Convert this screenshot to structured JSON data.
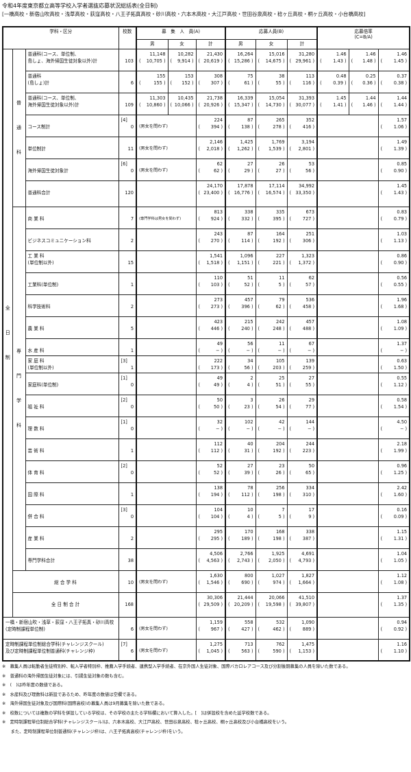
{
  "title": "令和4年度東京都立高等学校入学者選抜応募状況総括表(全日制)",
  "subtitle": "[一橋高校・新宿山吹高校・浅草高校・荻窪高校・八王子拓真高校・砂川高校・六本木高校・大江戸高校・世田谷泉高校・稔ヶ丘高校・桐ヶ丘高校・小台橋高校]",
  "header": {
    "category": "学科・区分",
    "schools": "校数",
    "recruit": "募　集　人　員(A)",
    "apply": "応募人員(B)",
    "ratio": "応募倍率",
    "ratio_formula": "(C=B/A)",
    "male": "男",
    "female": "女",
    "total": "計"
  },
  "sections": {
    "fulltime": [
      "全",
      "日",
      "制"
    ],
    "general": [
      "普",
      "通",
      "科"
    ],
    "specialized": [
      "専",
      "門",
      "学",
      "科"
    ]
  },
  "rows": [
    {
      "label": [
        "普通科(コース、単位制、",
        "島しょ、海外帰国生徒対象以外)計"
      ],
      "schools": "103",
      "recruit": [
        "11,148",
        "10,282",
        "21,430"
      ],
      "recruit_prev": [
        "10,705",
        "9,914",
        "20,619"
      ],
      "apply": [
        "16,264",
        "15,016",
        "31,280"
      ],
      "apply_prev": [
        "15,286",
        "14,675",
        "29,961"
      ],
      "ratio": [
        "1.46",
        "1.46",
        "1.46"
      ],
      "ratio_prev": [
        "1.43",
        "1.48",
        "1.45"
      ]
    },
    {
      "label": [
        "普通科",
        "(島しょ)計"
      ],
      "schools": "6",
      "recruit": [
        "155",
        "153",
        "308"
      ],
      "recruit_prev": [
        "155",
        "152",
        "307"
      ],
      "apply": [
        "75",
        "38",
        "113"
      ],
      "apply_prev": [
        "61",
        "55",
        "116"
      ],
      "ratio": [
        "0.48",
        "0.25",
        "0.37"
      ],
      "ratio_prev": [
        "0.39",
        "0.36",
        "0.38"
      ]
    },
    {
      "label": [
        "普通科(コース、単位制、",
        "海外帰国生徒対象以外)計"
      ],
      "schools": "109",
      "recruit": [
        "11,303",
        "10,435",
        "21,738"
      ],
      "recruit_prev": [
        "10,860",
        "10,066",
        "20,926"
      ],
      "apply": [
        "16,339",
        "15,054",
        "31,393"
      ],
      "apply_prev": [
        "15,347",
        "14,730",
        "30,077"
      ],
      "ratio": [
        "1.45",
        "1.44",
        "1.44"
      ],
      "ratio_prev": [
        "1.41",
        "1.46",
        "1.44"
      ]
    },
    {
      "label": [
        "コース制計"
      ],
      "bracket": "[4]",
      "schools": "0",
      "note": "(男女を問わず)",
      "recruit": [
        "224"
      ],
      "recruit_prev": [
        "394"
      ],
      "apply": [
        "87",
        "265",
        "352"
      ],
      "apply_prev": [
        "138",
        "278",
        "416"
      ],
      "ratio": [
        "1.57"
      ],
      "ratio_prev": [
        "1.06"
      ]
    },
    {
      "label": [
        "単位制計"
      ],
      "schools": "11",
      "note": "(男女を問わず)",
      "recruit": [
        "2,146"
      ],
      "recruit_prev": [
        "2,018"
      ],
      "apply": [
        "1,425",
        "1,769",
        "3,194"
      ],
      "apply_prev": [
        "1,262",
        "1,539",
        "2,801"
      ],
      "ratio": [
        "1.49"
      ],
      "ratio_prev": [
        "1.39"
      ]
    },
    {
      "label": [
        "海外帰国生徒対象計"
      ],
      "bracket": "[6]",
      "schools": "0",
      "note": "(男女を問わず)",
      "recruit": [
        "62"
      ],
      "recruit_prev": [
        "62"
      ],
      "apply": [
        "27",
        "26",
        "53"
      ],
      "apply_prev": [
        "29",
        "27",
        "56"
      ],
      "ratio": [
        "0.85"
      ],
      "ratio_prev": [
        "0.90"
      ]
    },
    {
      "label": [
        "普通科合計"
      ],
      "schools": "120",
      "recruit": [
        "24,170"
      ],
      "recruit_prev": [
        "23,400"
      ],
      "apply": [
        "17,878",
        "17,114",
        "34,992"
      ],
      "apply_prev": [
        "16,776",
        "16,574",
        "33,350"
      ],
      "ratio": [
        "1.45"
      ],
      "ratio_prev": [
        "1.43"
      ]
    },
    {
      "label": [
        "商 業 科"
      ],
      "schools": "7",
      "note": "(専門学科は男女を問わず)",
      "recruit": [
        "813"
      ],
      "recruit_prev": [
        "924"
      ],
      "apply": [
        "338",
        "335",
        "673"
      ],
      "apply_prev": [
        "332",
        "395",
        "727"
      ],
      "ratio": [
        "0.83"
      ],
      "ratio_prev": [
        "0.79"
      ]
    },
    {
      "label": [
        "ビジネスコミュニケーション科"
      ],
      "schools": "2",
      "recruit": [
        "243"
      ],
      "recruit_prev": [
        "270"
      ],
      "apply": [
        "87",
        "164",
        "251"
      ],
      "apply_prev": [
        "114",
        "192",
        "306"
      ],
      "ratio": [
        "1.03"
      ],
      "ratio_prev": [
        "1.13"
      ]
    },
    {
      "label": [
        "工 業 科",
        "(単位制以外)"
      ],
      "schools": "15",
      "recruit": [
        "1,541"
      ],
      "recruit_prev": [
        "1,518"
      ],
      "apply": [
        "1,096",
        "227",
        "1,323"
      ],
      "apply_prev": [
        "1,151",
        "221",
        "1,372"
      ],
      "ratio": [
        "0.86"
      ],
      "ratio_prev": [
        "0.90"
      ]
    },
    {
      "label": [
        "工業科(単位制)"
      ],
      "schools": "1",
      "recruit": [
        "110"
      ],
      "recruit_prev": [
        "103"
      ],
      "apply": [
        "51",
        "11",
        "62"
      ],
      "apply_prev": [
        "52",
        "5",
        "57"
      ],
      "ratio": [
        "0.56"
      ],
      "ratio_prev": [
        "0.55"
      ]
    },
    {
      "label": [
        "科学技術科"
      ],
      "schools": "2",
      "recruit": [
        "273"
      ],
      "recruit_prev": [
        "273"
      ],
      "apply": [
        "457",
        "79",
        "536"
      ],
      "apply_prev": [
        "396",
        "62",
        "458"
      ],
      "ratio": [
        "1.96"
      ],
      "ratio_prev": [
        "1.68"
      ]
    },
    {
      "label": [
        "農 業 科"
      ],
      "schools": "5",
      "recruit": [
        "423"
      ],
      "recruit_prev": [
        "446"
      ],
      "apply": [
        "215",
        "242",
        "457"
      ],
      "apply_prev": [
        "240",
        "248",
        "488"
      ],
      "ratio": [
        "1.08"
      ],
      "ratio_prev": [
        "1.09"
      ]
    },
    {
      "label": [
        "水 産 科"
      ],
      "schools": "1",
      "recruit": [
        "49"
      ],
      "recruit_prev": [
        "−"
      ],
      "apply": [
        "56",
        "11",
        "67"
      ],
      "apply_prev": [
        "−",
        "−",
        "−"
      ],
      "ratio": [
        "1.37"
      ],
      "ratio_prev": [
        "−"
      ]
    },
    {
      "label": [
        "家 庭 科",
        "(単位制以外)"
      ],
      "bracket": "[3]",
      "schools": "1",
      "recruit": [
        "222"
      ],
      "recruit_prev": [
        "173"
      ],
      "apply": [
        "34",
        "105",
        "139"
      ],
      "apply_prev": [
        "56",
        "203",
        "259"
      ],
      "ratio": [
        "0.63"
      ],
      "ratio_prev": [
        "1.50"
      ]
    },
    {
      "label": [
        "家庭科(単位制)"
      ],
      "bracket": "[1]",
      "schools": "0",
      "recruit": [
        "49"
      ],
      "recruit_prev": [
        "49"
      ],
      "apply": [
        "2",
        "25",
        "27"
      ],
      "apply_prev": [
        "4",
        "51",
        "55"
      ],
      "ratio": [
        "0.55"
      ],
      "ratio_prev": [
        "1.12"
      ]
    },
    {
      "label": [
        "福 祉 科"
      ],
      "bracket": "[2]",
      "schools": "0",
      "recruit": [
        "50"
      ],
      "recruit_prev": [
        "50"
      ],
      "apply": [
        "3",
        "26",
        "29"
      ],
      "apply_prev": [
        "23",
        "54",
        "77"
      ],
      "ratio": [
        "0.58"
      ],
      "ratio_prev": [
        "1.54"
      ]
    },
    {
      "label": [
        "理 数 科"
      ],
      "bracket": "[1]",
      "schools": "0",
      "recruit": [
        "32"
      ],
      "recruit_prev": [
        "−"
      ],
      "apply": [
        "102",
        "42",
        "144"
      ],
      "apply_prev": [
        "−",
        "−",
        "−"
      ],
      "ratio": [
        "4.50"
      ],
      "ratio_prev": [
        "−"
      ]
    },
    {
      "label": [
        "芸 術 科"
      ],
      "schools": "1",
      "recruit": [
        "112"
      ],
      "recruit_prev": [
        "112"
      ],
      "apply": [
        "40",
        "204",
        "244"
      ],
      "apply_prev": [
        "31",
        "192",
        "223"
      ],
      "ratio": [
        "2.18"
      ],
      "ratio_prev": [
        "1.99"
      ]
    },
    {
      "label": [
        "体 育 科"
      ],
      "bracket": "[2]",
      "schools": "0",
      "recruit": [
        "52"
      ],
      "recruit_prev": [
        "52"
      ],
      "apply": [
        "27",
        "23",
        "50"
      ],
      "apply_prev": [
        "39",
        "26",
        "65"
      ],
      "ratio": [
        "0.96"
      ],
      "ratio_prev": [
        "1.25"
      ]
    },
    {
      "label": [
        "国 際 科"
      ],
      "schools": "1",
      "recruit": [
        "138"
      ],
      "recruit_prev": [
        "194"
      ],
      "apply": [
        "78",
        "256",
        "334"
      ],
      "apply_prev": [
        "112",
        "198",
        "310"
      ],
      "ratio": [
        "2.42"
      ],
      "ratio_prev": [
        "1.60"
      ]
    },
    {
      "label": [
        "併 合 科"
      ],
      "bracket": "[3]",
      "schools": "0",
      "recruit": [
        "104"
      ],
      "recruit_prev": [
        "104"
      ],
      "apply": [
        "10",
        "7",
        "17"
      ],
      "apply_prev": [
        "4",
        "5",
        "9"
      ],
      "ratio": [
        "0.16"
      ],
      "ratio_prev": [
        "0.09"
      ]
    },
    {
      "label": [
        "産 業 科"
      ],
      "schools": "2",
      "recruit": [
        "295"
      ],
      "recruit_prev": [
        "295"
      ],
      "apply": [
        "170",
        "168",
        "338"
      ],
      "apply_prev": [
        "189",
        "198",
        "387"
      ],
      "ratio": [
        "1.15"
      ],
      "ratio_prev": [
        "1.31"
      ]
    },
    {
      "label": [
        "専門学科合計"
      ],
      "schools": "38",
      "recruit": [
        "4,506"
      ],
      "recruit_prev": [
        "4,563"
      ],
      "apply": [
        "2,766",
        "1,925",
        "4,691"
      ],
      "apply_prev": [
        "2,743",
        "2,050",
        "4,793"
      ],
      "ratio": [
        "1.04"
      ],
      "ratio_prev": [
        "1.05"
      ]
    },
    {
      "label": [
        "総 合 学 科"
      ],
      "schools": "10",
      "note": "(男女を問わず)",
      "recruit": [
        "1,630"
      ],
      "recruit_prev": [
        "1,546"
      ],
      "apply": [
        "800",
        "1,027",
        "1,827"
      ],
      "apply_prev": [
        "690",
        "974",
        "1,664"
      ],
      "ratio": [
        "1.12"
      ],
      "ratio_prev": [
        "1.08"
      ]
    },
    {
      "label": [
        "全 日 制 合 計"
      ],
      "schools": "168",
      "recruit": [
        "30,306"
      ],
      "recruit_prev": [
        "29,509"
      ],
      "apply": [
        "21,444",
        "20,066",
        "41,510"
      ],
      "apply_prev": [
        "20,209",
        "19,598",
        "39,807"
      ],
      "ratio": [
        "1.37"
      ],
      "ratio_prev": [
        "1.35"
      ]
    },
    {
      "label": [
        "一橋・新宿山吹・浅草・荻窪・八王子拓真・砂川高校",
        "(定時制課程単位制)"
      ],
      "schools": "6",
      "note": "(男女を問わず)",
      "recruit": [
        "1,159"
      ],
      "recruit_prev": [
        "967"
      ],
      "apply": [
        "558",
        "532",
        "1,090"
      ],
      "apply_prev": [
        "427",
        "462",
        "889"
      ],
      "ratio": [
        "0.94"
      ],
      "ratio_prev": [
        "0.92"
      ]
    },
    {
      "label": [
        "定時制課程単位制総合学科(チャレンジスクール)",
        "及び定時制課程単位制普通科(チャレンジ枠)"
      ],
      "bracket": "[7]",
      "schools": "6",
      "note": "(男女を問わず)",
      "recruit": [
        "1,275"
      ],
      "recruit_prev": [
        "1,045"
      ],
      "apply": [
        "713",
        "762",
        "1,475"
      ],
      "apply_prev": [
        "563",
        "590",
        "1,153"
      ],
      "ratio": [
        "1.16"
      ],
      "ratio_prev": [
        "1.10"
      ]
    }
  ],
  "notes": [
    "※　募集人員は転勤者生徒特別枠、転入学者特別枠、推薦入学手続者、連携型入学手続者、在京外国人生徒対象、国際バカロレアコース及び分割後期募集の人員を除いた数である。",
    "※　普通科の海外帰国生徒対象には、引揚生徒対象の数も含む。",
    "※　(　)は昨年度の数値である。",
    "※　水産科及び理数科は新設であるため、昨年度の数値は空欄である。",
    "※　海外帰国生徒対象及び国際科(国際高校)の募集人員は9月募集を除いた数である。",
    "※　校数については複数の学科を併設している学校は、その学校の主たる学科欄において算入した。[　]は併設校を含めた延学校数である。",
    "※　定時制課程単位制総合学科(チャレンジスクール)は、六本木高校、大江戸高校、世田谷泉高校、稔ヶ丘高校、桐ヶ丘高校及び小台橋高校をいう。",
    "　　また、定時制課程単位制普通科(チャレンジ枠)は、八王子拓真高校(チャレンジ枠)をいう。"
  ]
}
